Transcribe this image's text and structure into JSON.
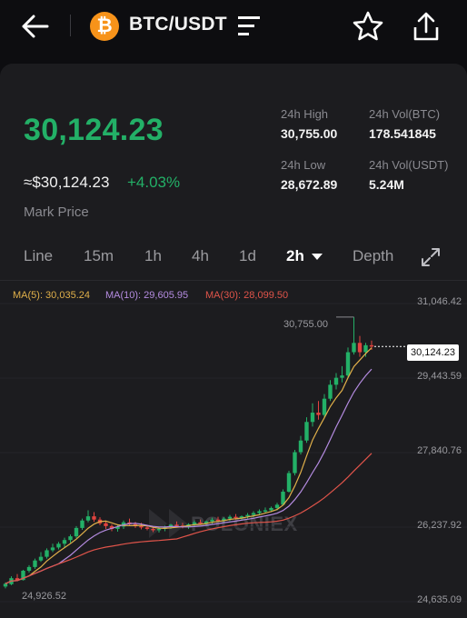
{
  "header": {
    "coin_symbol": "₿",
    "pair": "BTC/USDT",
    "icons": [
      "back-arrow-icon",
      "bitcoin-icon",
      "menu-icon",
      "star-icon",
      "share-icon"
    ]
  },
  "ticker": {
    "price": "30,124.23",
    "approx": "≈$30,124.23",
    "change": "+4.03%",
    "mark_label": "Mark Price",
    "stats": [
      {
        "label": "24h High",
        "value": "30,755.00"
      },
      {
        "label": "24h Vol(BTC)",
        "value": "178.541845"
      },
      {
        "label": "24h Low",
        "value": "28,672.89"
      },
      {
        "label": "24h Vol(USDT)",
        "value": "5.24M"
      }
    ]
  },
  "tabs": [
    {
      "label": "Line"
    },
    {
      "label": "15m"
    },
    {
      "label": "1h"
    },
    {
      "label": "4h"
    },
    {
      "label": "1d"
    },
    {
      "label": "2h",
      "active": true
    },
    {
      "label": "Depth"
    }
  ],
  "colors": {
    "up": "#23b067",
    "down": "#e2433f",
    "ma5": "#e0b04a",
    "ma10": "#b48be0",
    "ma30": "#e0544a"
  },
  "chart": {
    "ma_labels": [
      "MA(5): 30,035.24",
      "MA(10): 29,605.95",
      "MA(30): 28,099.50"
    ],
    "y_labels": [
      "31,046.42",
      "29,443.59",
      "27,840.76",
      "26,237.92",
      "24,635.09"
    ],
    "current_tag": "30,124.23",
    "high_label": "30,755.00",
    "low_label": "24,926.52",
    "watermark": "POLONIEX"
  },
  "chart_data": {
    "type": "candlestick",
    "ylim": [
      24635.09,
      31046.42
    ],
    "y_ticks": [
      31046.42,
      29443.59,
      27840.76,
      26237.92,
      24635.09
    ],
    "candles": [
      [
        24960,
        25050,
        24920,
        25020
      ],
      [
        25010,
        25180,
        24990,
        25140
      ],
      [
        25140,
        25230,
        25080,
        25100
      ],
      [
        25100,
        25320,
        25090,
        25300
      ],
      [
        25300,
        25420,
        25260,
        25380
      ],
      [
        25380,
        25560,
        25340,
        25520
      ],
      [
        25520,
        25700,
        25490,
        25600
      ],
      [
        25600,
        25780,
        25560,
        25740
      ],
      [
        25740,
        25880,
        25700,
        25800
      ],
      [
        25800,
        25920,
        25760,
        25880
      ],
      [
        25880,
        26010,
        25800,
        25960
      ],
      [
        25960,
        26080,
        25900,
        26040
      ],
      [
        26040,
        26260,
        26000,
        26220
      ],
      [
        26220,
        26420,
        26180,
        26380
      ],
      [
        26380,
        26600,
        26340,
        26470
      ],
      [
        26470,
        26560,
        26350,
        26400
      ],
      [
        26400,
        26450,
        26280,
        26320
      ],
      [
        26320,
        26380,
        26200,
        26260
      ],
      [
        26260,
        26300,
        26150,
        26200
      ],
      [
        26200,
        26290,
        26140,
        26250
      ],
      [
        26250,
        26380,
        26200,
        26340
      ],
      [
        26340,
        26420,
        26280,
        26300
      ],
      [
        26300,
        26350,
        26220,
        26260
      ],
      [
        26260,
        26330,
        26190,
        26230
      ],
      [
        26230,
        26290,
        26170,
        26200
      ],
      [
        26200,
        26250,
        26130,
        26180
      ],
      [
        26180,
        26240,
        26120,
        26200
      ],
      [
        26200,
        26270,
        26150,
        26240
      ],
      [
        26240,
        26310,
        26200,
        26290
      ],
      [
        26290,
        26360,
        26230,
        26270
      ],
      [
        26270,
        26330,
        26210,
        26250
      ],
      [
        26250,
        26320,
        26200,
        26300
      ],
      [
        26300,
        26380,
        26250,
        26340
      ],
      [
        26340,
        26400,
        26290,
        26320
      ],
      [
        26320,
        26380,
        26270,
        26360
      ],
      [
        26360,
        26440,
        26310,
        26400
      ],
      [
        26400,
        26460,
        26350,
        26380
      ],
      [
        26380,
        26450,
        26330,
        26420
      ],
      [
        26420,
        26500,
        26370,
        26460
      ],
      [
        26460,
        26520,
        26400,
        26430
      ],
      [
        26430,
        26490,
        26380,
        26470
      ],
      [
        26470,
        26540,
        26420,
        26500
      ],
      [
        26500,
        26580,
        26450,
        26540
      ],
      [
        26540,
        26620,
        26490,
        26580
      ],
      [
        26580,
        26660,
        26530,
        26600
      ],
      [
        26600,
        26680,
        26560,
        26650
      ],
      [
        26650,
        26760,
        26600,
        26720
      ],
      [
        26720,
        27050,
        26700,
        27000
      ],
      [
        27000,
        27450,
        26980,
        27400
      ],
      [
        27400,
        27900,
        27350,
        27850
      ],
      [
        27850,
        28200,
        27800,
        28100
      ],
      [
        28100,
        28600,
        28050,
        28500
      ],
      [
        28500,
        28900,
        28400,
        28700
      ],
      [
        28700,
        28950,
        28550,
        28650
      ],
      [
        28650,
        29100,
        28600,
        29000
      ],
      [
        29000,
        29400,
        28950,
        29300
      ],
      [
        29300,
        29550,
        29200,
        29450
      ],
      [
        29450,
        29700,
        29350,
        29500
      ],
      [
        29500,
        30100,
        29450,
        30000
      ],
      [
        30000,
        30755,
        29950,
        30200
      ],
      [
        30200,
        30350,
        29900,
        30000
      ],
      [
        30000,
        30200,
        29900,
        30150
      ],
      [
        30150,
        30250,
        30050,
        30124
      ]
    ],
    "ma5_start": 24990,
    "series": [
      {
        "name": "MA(5)",
        "last": 30035.24
      },
      {
        "name": "MA(10)",
        "last": 29605.95
      },
      {
        "name": "MA(30)",
        "last": 28099.5
      }
    ]
  }
}
